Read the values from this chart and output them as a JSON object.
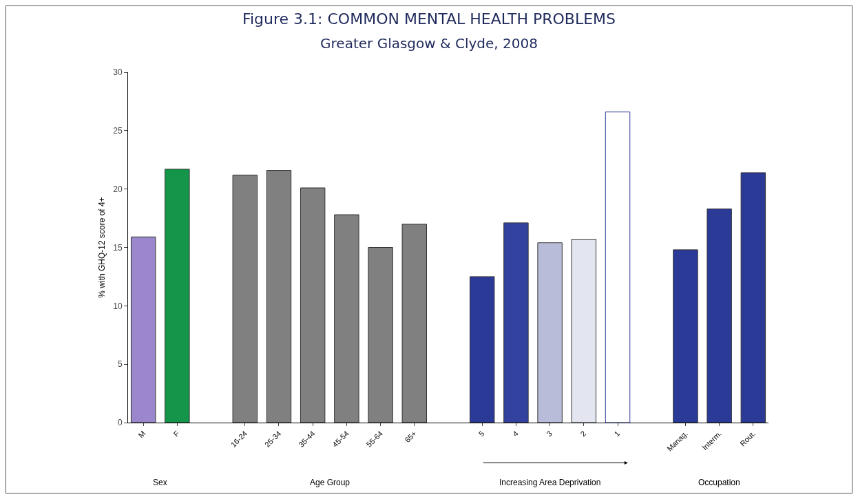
{
  "chart_data": {
    "type": "bar",
    "title": "Figure 3.1: COMMON MENTAL HEALTH PROBLEMS",
    "subtitle": "Greater Glasgow & Clyde, 2008",
    "ylabel": "% with GHQ-12 score of 4+",
    "categories": [
      "M",
      "F",
      null,
      "16-24",
      "25-34",
      "35-44",
      "45-54",
      "55-64",
      "65+",
      null,
      "5",
      "4",
      "3",
      "2",
      "1",
      null,
      "Manag.",
      "Interm.",
      "Rout."
    ],
    "values": [
      15.9,
      21.7,
      null,
      21.2,
      21.6,
      20.1,
      17.8,
      15.0,
      17.0,
      null,
      12.5,
      17.1,
      15.4,
      15.7,
      26.6,
      null,
      14.8,
      18.3,
      21.4
    ],
    "colors": [
      "#9b88cc",
      "#13954a",
      null,
      "#808080",
      "#808080",
      "#808080",
      "#808080",
      "#808080",
      "#808080",
      null,
      "#2b3a97",
      "#33429e",
      "#b9bcd8",
      "#e3e5f0",
      "#ffffff",
      null,
      "#2b3a97",
      "#2b3a97",
      "#2b3a97"
    ],
    "ylim": [
      0,
      30
    ],
    "yticks": [
      0,
      5,
      10,
      15,
      20,
      25,
      30
    ],
    "grid": false,
    "annotations": [
      "Sex",
      "Age Group",
      "Increasing Area Deprivation",
      "Occupation"
    ]
  }
}
